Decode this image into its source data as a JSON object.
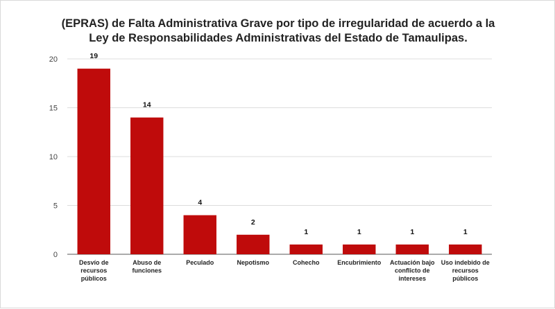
{
  "chart_data": {
    "type": "bar",
    "title_lines": [
      "(EPRAS) de Falta Administrativa Grave por tipo de irregularidad de acuerdo a la",
      "Ley de Responsabilidades Administrativas del Estado de Tamaulipas."
    ],
    "categories": [
      [
        "Desvío de",
        "recursos",
        "públicos"
      ],
      [
        "Abuso de",
        "funciones"
      ],
      [
        "Peculado"
      ],
      [
        "Nepotismo"
      ],
      [
        "Cohecho"
      ],
      [
        "Encubrimiento"
      ],
      [
        "Actuación bajo",
        "conflicto de",
        "intereses"
      ],
      [
        "Uso indebido de",
        "recursos",
        "públicos"
      ]
    ],
    "values": [
      19,
      14,
      4,
      2,
      1,
      1,
      1,
      1
    ],
    "ylim": [
      0,
      20
    ],
    "yticks": [
      0,
      5,
      10,
      15,
      20
    ],
    "bar_color": "#bf0b0b",
    "grid": true,
    "legend": "none",
    "xlabel": "",
    "ylabel": ""
  }
}
